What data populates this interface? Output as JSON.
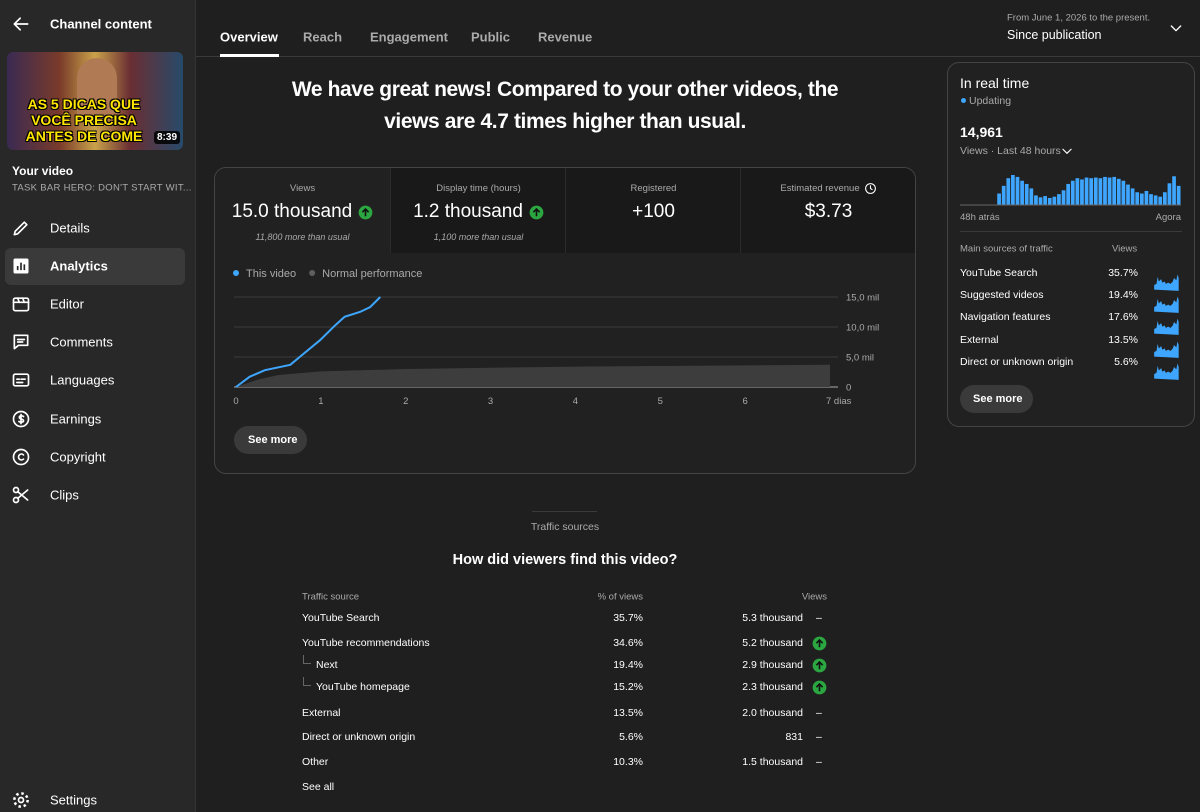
{
  "sidebar": {
    "back_title": "Channel content",
    "thumbnail": {
      "caption": "AS 5 DICAS QUE VOCÊ PRECISA ANTES DE COME",
      "duration": "8:39"
    },
    "heading": "Your video",
    "video_title": "TASK BAR HERO: DON'T START WIT...",
    "nav": [
      "Details",
      "Analytics",
      "Editor",
      "Comments",
      "Languages",
      "Earnings",
      "Copyright",
      "Clips"
    ],
    "active": "Analytics",
    "settings": "Settings"
  },
  "tabs": {
    "items": [
      "Overview",
      "Reach",
      "Engagement",
      "Public",
      "Revenue"
    ],
    "active": "Overview"
  },
  "date_range": {
    "caption": "From June 1, 2026 to the present.",
    "label": "Since publication"
  },
  "headline": "We have great news! Compared to your other videos, the views are 4.7 times higher than usual.",
  "metrics": [
    {
      "label": "Views",
      "value": "15.0 thousand",
      "trend": "up",
      "note": "11,800 more than usual"
    },
    {
      "label": "Display time (hours)",
      "value": "1.2 thousand",
      "trend": "up",
      "note": "1,100 more than usual"
    },
    {
      "label": "Registered",
      "value": "+100"
    },
    {
      "label": "Estimated revenue",
      "value": "$3.73",
      "info": "clock"
    }
  ],
  "see_more": "See more",
  "chart_data": [
    {
      "type": "line",
      "xlim": [
        0,
        7
      ],
      "xticks": [
        0,
        1,
        2,
        3,
        4,
        5,
        6,
        {
          "value": 7,
          "label": "7 dias"
        }
      ],
      "ylim": [
        0,
        15000
      ],
      "yticks": [
        0,
        {
          "value": 5000,
          "label": "5,0 mil"
        },
        {
          "value": 10000,
          "label": "10,0 mil"
        },
        {
          "value": 15000,
          "label": "15,0 mil"
        }
      ],
      "grid": true,
      "series": [
        {
          "name": "This video",
          "color": "#3ea6ff",
          "x": [
            0,
            0.16,
            0.34,
            0.64,
            0.75,
            0.99,
            1.17,
            1.28,
            1.46,
            1.58,
            1.7
          ],
          "values": [
            0,
            1700,
            2800,
            3700,
            5000,
            7800,
            10300,
            11700,
            12500,
            13300,
            15000
          ]
        },
        {
          "name": "Normal performance",
          "color": "#5f5f5f",
          "type": "area",
          "x": [
            0,
            0.25,
            0.5,
            1,
            2,
            3,
            4,
            5,
            6,
            7
          ],
          "values": [
            0,
            1200,
            2000,
            2600,
            3000,
            3200,
            3400,
            3500,
            3600,
            3700
          ]
        }
      ]
    },
    {
      "type": "bar",
      "color": "#3ea6ff",
      "categories": [
        "48h atrás",
        null,
        null,
        null,
        null,
        null,
        null,
        null,
        null,
        null,
        null,
        null,
        null,
        null,
        null,
        null,
        null,
        null,
        null,
        null,
        null,
        null,
        null,
        null,
        null,
        null,
        null,
        null,
        null,
        null,
        null,
        null,
        null,
        null,
        null,
        null,
        null,
        null,
        null,
        null,
        null,
        null,
        null,
        null,
        null,
        null,
        null,
        "Agora"
      ],
      "values": [
        0,
        0,
        0,
        0,
        0,
        0,
        0,
        0,
        180,
        300,
        420,
        470,
        440,
        380,
        330,
        260,
        150,
        120,
        140,
        110,
        130,
        170,
        230,
        330,
        380,
        420,
        400,
        430,
        420,
        430,
        420,
        440,
        430,
        440,
        410,
        380,
        320,
        260,
        200,
        180,
        220,
        170,
        150,
        130,
        200,
        340,
        450,
        300
      ]
    }
  ],
  "realtime": {
    "title": "In real time",
    "status": "Updating",
    "total": "14,961",
    "subtitle": "Views · Last 48 hours",
    "sources_header": [
      "Main sources of traffic",
      "Views"
    ],
    "sources": [
      {
        "name": "YouTube Search",
        "value": "35.7%"
      },
      {
        "name": "Suggested videos",
        "value": "19.4%"
      },
      {
        "name": "Navigation features",
        "value": "17.6%"
      },
      {
        "name": "External",
        "value": "13.5%"
      },
      {
        "name": "Direct or unknown origin",
        "value": "5.6%"
      }
    ],
    "button": "See more"
  },
  "traffic": {
    "kicker": "Traffic sources",
    "title": "How did viewers find this video?",
    "columns": [
      "Traffic source",
      "% of views",
      "Views"
    ],
    "rows": [
      {
        "source": "YouTube Search",
        "percent": "35.7%",
        "views": "5.3 thousand",
        "change": "–"
      },
      {
        "source": "YouTube recommendations",
        "percent": "34.6%",
        "views": "5.2 thousand",
        "trend": "up"
      },
      {
        "source": "Next",
        "percent": "19.4%",
        "views": "2.9 thousand",
        "trend": "up",
        "level": 1
      },
      {
        "source": "YouTube homepage",
        "percent": "15.2%",
        "views": "2.3 thousand",
        "trend": "up",
        "level": 1
      },
      {
        "source": "External",
        "percent": "13.5%",
        "views": "2.0 thousand",
        "change": "–"
      },
      {
        "source": "Direct or unknown origin",
        "percent": "5.6%",
        "views": "831",
        "change": "–"
      },
      {
        "source": "Other",
        "percent": "10.3%",
        "views": "1.5 thousand",
        "change": "–"
      }
    ],
    "link": "See all"
  }
}
